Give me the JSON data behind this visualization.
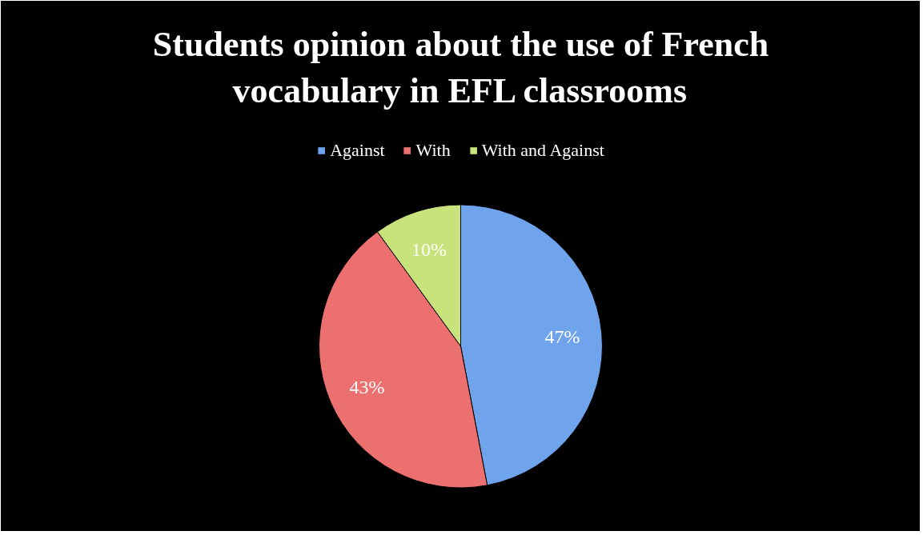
{
  "chart_data": {
    "type": "pie",
    "title": "Students opinion about the use of French vocabulary in EFL classrooms",
    "categories": [
      "Against",
      "With",
      "With and Against"
    ],
    "values": [
      47,
      43,
      10
    ],
    "colors": [
      "#6fa3ec",
      "#ec7070",
      "#c8e27c"
    ],
    "value_labels": [
      "47%",
      "43%",
      "10%"
    ],
    "legend": "top"
  }
}
